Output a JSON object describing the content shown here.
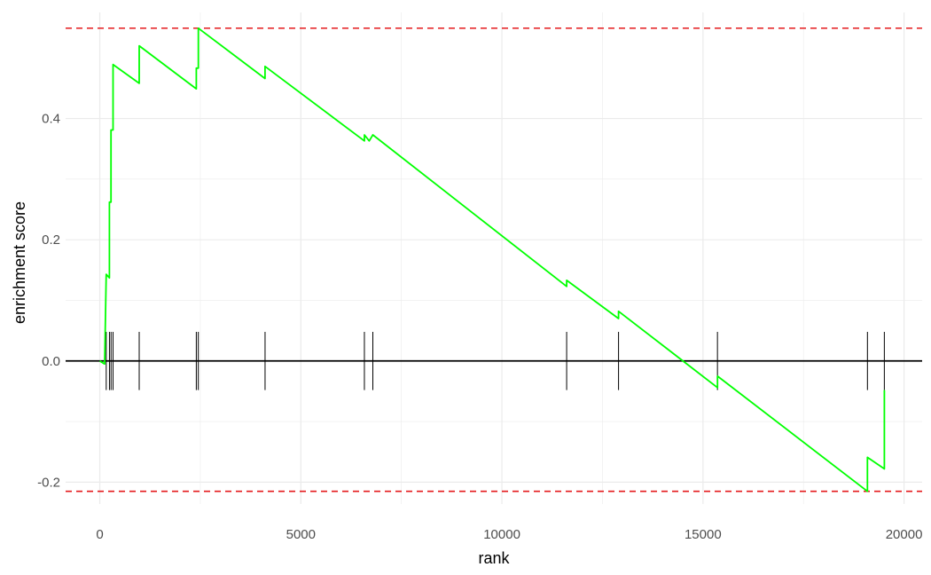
{
  "chart_data": {
    "type": "line",
    "title": "",
    "xlabel": "rank",
    "ylabel": "enrichment score",
    "xlim": [
      -850,
      20450
    ],
    "ylim": [
      -0.236,
      0.575
    ],
    "x_ticks": [
      0,
      5000,
      10000,
      15000,
      20000
    ],
    "x_tick_labels": [
      "0",
      "5000",
      "10000",
      "15000",
      "20000"
    ],
    "y_ticks": [
      -0.2,
      0.0,
      0.2,
      0.4
    ],
    "y_tick_labels": [
      "-0.2",
      "0.0",
      "0.2",
      "0.4"
    ],
    "grid": true,
    "zero_line": 0,
    "hit_bar_range": [
      -0.048,
      0.048
    ],
    "colors": {
      "running_score": "#00ff00",
      "extreme_lines": "#e41a1c",
      "hits": "#000000",
      "zero_line": "#000000",
      "grid": "#ebebeb"
    },
    "extreme_lines": [
      0.549,
      -0.215
    ],
    "hits": [
      160,
      240,
      280,
      330,
      980,
      2400,
      2450,
      4110,
      6580,
      6790,
      11610,
      12900,
      15360,
      19090,
      19510
    ],
    "series": [
      {
        "points": [
          [
            0,
            0.0
          ],
          [
            120,
            -0.005
          ],
          [
            160,
            0.143
          ],
          [
            240,
            0.137
          ],
          [
            240,
            0.262
          ],
          [
            280,
            0.262
          ],
          [
            280,
            0.381
          ],
          [
            330,
            0.381
          ],
          [
            330,
            0.489
          ],
          [
            980,
            0.458
          ],
          [
            980,
            0.52
          ],
          [
            2400,
            0.449
          ],
          [
            2400,
            0.483
          ],
          [
            2450,
            0.483
          ],
          [
            2450,
            0.549
          ],
          [
            4110,
            0.466
          ],
          [
            4110,
            0.486
          ],
          [
            6580,
            0.363
          ],
          [
            6580,
            0.373
          ],
          [
            6700,
            0.363
          ],
          [
            6790,
            0.373
          ],
          [
            11610,
            0.123
          ],
          [
            11610,
            0.133
          ],
          [
            12900,
            0.07
          ],
          [
            12900,
            0.082
          ],
          [
            15360,
            -0.044
          ],
          [
            15360,
            -0.025
          ],
          [
            19090,
            -0.215
          ],
          [
            19090,
            -0.159
          ],
          [
            19510,
            -0.178
          ],
          [
            19510,
            -0.048
          ]
        ]
      }
    ]
  }
}
